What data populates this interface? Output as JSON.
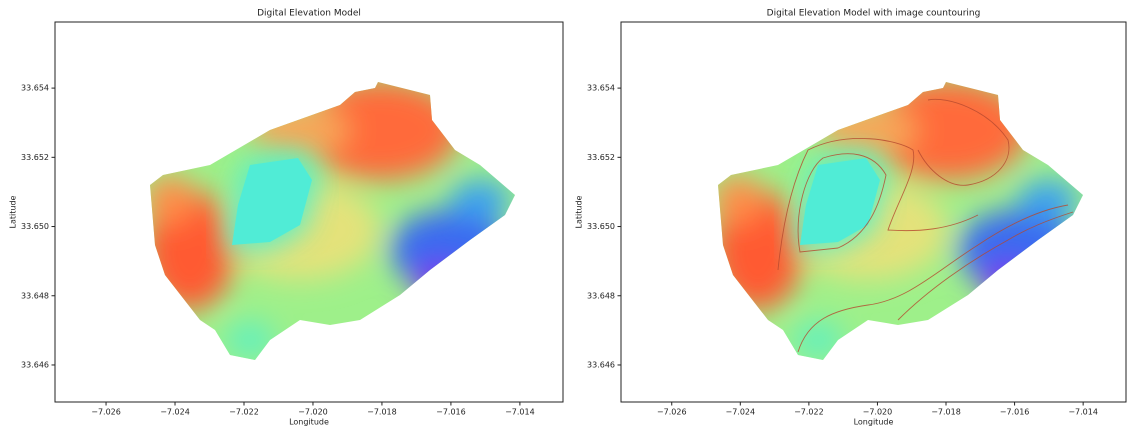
{
  "chart_data": [
    {
      "type": "image",
      "title": "Digital Elevation Model",
      "xlabel": "Longitude",
      "ylabel": "Latitude",
      "xlim": [
        -7.02748,
        -7.01275
      ],
      "ylim": [
        33.64493,
        33.65591
      ],
      "xticks": [
        {
          "value": -7.026,
          "label": "−7.026"
        },
        {
          "value": -7.024,
          "label": "−7.024"
        },
        {
          "value": -7.022,
          "label": "−7.022"
        },
        {
          "value": -7.02,
          "label": "−7.020"
        },
        {
          "value": -7.018,
          "label": "−7.018"
        },
        {
          "value": -7.016,
          "label": "−7.016"
        },
        {
          "value": -7.014,
          "label": "−7.014"
        }
      ],
      "yticks": [
        33.646,
        33.648,
        {
          "value": 33.65,
          "label": "33.650"
        },
        33.652,
        33.654
      ]
    },
    {
      "type": "image",
      "title": "Digital Elevation Model with image countouring",
      "xlabel": "Longitude",
      "ylabel": "Latitude",
      "xlim": [
        -7.02748,
        -7.01275
      ],
      "ylim": [
        33.64493,
        33.65591
      ],
      "xticks": [
        {
          "value": -7.026,
          "label": "−7.026"
        },
        {
          "value": -7.024,
          "label": "−7.024"
        },
        {
          "value": -7.022,
          "label": "−7.022"
        },
        {
          "value": -7.02,
          "label": "−7.020"
        },
        {
          "value": -7.018,
          "label": "−7.018"
        },
        {
          "value": -7.016,
          "label": "−7.016"
        },
        {
          "value": -7.014,
          "label": "−7.014"
        }
      ],
      "yticks": [
        33.646,
        33.648,
        {
          "value": 33.65,
          "label": "33.650"
        },
        33.652,
        33.654
      ]
    }
  ]
}
